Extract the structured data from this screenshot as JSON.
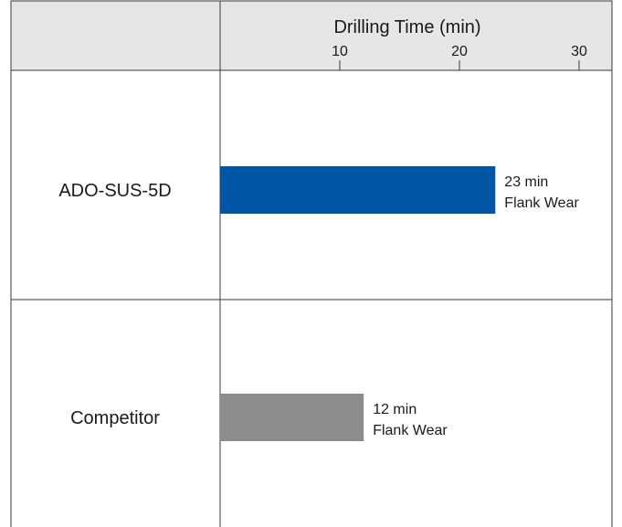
{
  "chart_data": {
    "type": "bar",
    "orientation": "horizontal",
    "title": "Drilling Time (min)",
    "xlabel": "Drilling Time (min)",
    "ylabel": "",
    "xlim": [
      0,
      35
    ],
    "xticks": [
      10,
      20,
      30
    ],
    "categories": [
      "ADO-SUS-5D",
      "Competitor"
    ],
    "values": [
      23,
      12
    ],
    "value_labels": [
      "23 min",
      "12 min"
    ],
    "annotations": [
      "Flank Wear",
      "Flank Wear"
    ],
    "colors": [
      "#0055a5",
      "#8c8c8c"
    ],
    "grid": false,
    "legend": "none"
  }
}
